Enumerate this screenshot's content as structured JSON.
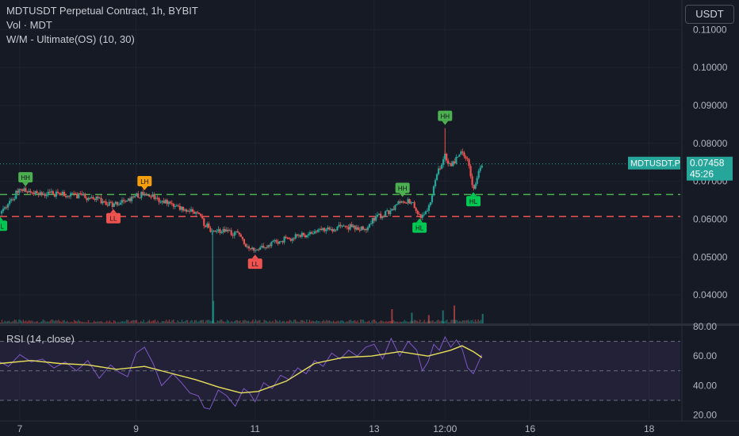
{
  "legend": {
    "title": "MDTUSDT Perpetual Contract, 1h, BYBIT",
    "vol": "Vol · MDT",
    "indicator": "W/M - Ultimate(OS) (10, 30)"
  },
  "currency_button": "USDT",
  "price_tag": {
    "symbol": "MDTUSDT.P",
    "price": "0.07458",
    "countdown": "45:26"
  },
  "rsi_legend": "RSI (14, close)",
  "colors": {
    "bg": "#161a25",
    "up": "#26a69a",
    "down": "#ef5350",
    "rsi": "#7e57c2",
    "rsi_ma": "#e7e05a",
    "green_label": "#4caf50",
    "orange_label": "#f59e0b"
  },
  "chart_data": [
    {
      "type": "candlestick",
      "title": "MDTUSDT Perpetual Contract, 1h, BYBIT",
      "y_tick_labels": [
        "0.11000",
        "0.10000",
        "0.09000",
        "0.08000",
        "0.07000",
        "0.06000",
        "0.05000",
        "0.04000"
      ],
      "ylim": [
        0.0325,
        0.1178
      ],
      "x_tick_labels": [
        "7",
        "9",
        "11",
        "13",
        "12:00",
        "16",
        "18"
      ],
      "x_ticks": [
        6.8,
        8.85,
        10.95,
        13.05,
        14.3,
        15.8,
        17.9
      ],
      "xlim": [
        6.45,
        18.45
      ],
      "path": [
        [
          6.45,
          0.0615
        ],
        [
          6.75,
          0.067
        ],
        [
          6.9,
          0.0678
        ],
        [
          7.2,
          0.0668
        ],
        [
          7.6,
          0.0665
        ],
        [
          7.9,
          0.066
        ],
        [
          8.2,
          0.065
        ],
        [
          8.45,
          0.0635
        ],
        [
          8.6,
          0.0645
        ],
        [
          8.85,
          0.066
        ],
        [
          9.0,
          0.0668
        ],
        [
          9.3,
          0.065
        ],
        [
          9.5,
          0.0632
        ],
        [
          9.7,
          0.0625
        ],
        [
          9.9,
          0.062
        ],
        [
          10.05,
          0.059
        ],
        [
          10.2,
          0.0565
        ],
        [
          10.4,
          0.057
        ],
        [
          10.65,
          0.056
        ],
        [
          10.8,
          0.053
        ],
        [
          10.95,
          0.0515
        ],
        [
          11.1,
          0.0525
        ],
        [
          11.4,
          0.0545
        ],
        [
          11.7,
          0.0555
        ],
        [
          12.0,
          0.0565
        ],
        [
          12.3,
          0.0575
        ],
        [
          12.6,
          0.058
        ],
        [
          12.9,
          0.0575
        ],
        [
          13.05,
          0.06
        ],
        [
          13.3,
          0.062
        ],
        [
          13.55,
          0.065
        ],
        [
          13.75,
          0.064
        ],
        [
          13.85,
          0.061
        ],
        [
          13.95,
          0.0615
        ],
        [
          14.05,
          0.065
        ],
        [
          14.15,
          0.072
        ],
        [
          14.3,
          0.077
        ],
        [
          14.4,
          0.074
        ],
        [
          14.6,
          0.078
        ],
        [
          14.7,
          0.076
        ],
        [
          14.8,
          0.068
        ],
        [
          14.95,
          0.0745
        ]
      ],
      "wick_spikes": [
        {
          "x": 10.2,
          "low": 0.0325
        },
        {
          "x": 14.3,
          "high": 0.084
        }
      ],
      "horizontal_levels": [
        {
          "value": 0.0665,
          "color": "#4caf50",
          "style": "dashed"
        },
        {
          "value": 0.0607,
          "color": "#ef5350",
          "style": "dashed"
        },
        {
          "value": 0.07458,
          "color": "#26a69a",
          "style": "dotted"
        }
      ],
      "pivot_labels": [
        {
          "text": "HL",
          "x": 6.45,
          "y": 0.0615,
          "color": "#00c853",
          "position": "below"
        },
        {
          "text": "HH",
          "x": 6.9,
          "y": 0.0678,
          "color": "#4caf50",
          "position": "above"
        },
        {
          "text": "LL",
          "x": 8.45,
          "y": 0.0635,
          "color": "#ef5350",
          "position": "below"
        },
        {
          "text": "LH",
          "x": 9.0,
          "y": 0.0668,
          "color": "#f59e0b",
          "position": "above"
        },
        {
          "text": "LL",
          "x": 10.95,
          "y": 0.0515,
          "color": "#ef5350",
          "position": "below"
        },
        {
          "text": "HH",
          "x": 13.55,
          "y": 0.065,
          "color": "#4caf50",
          "position": "above"
        },
        {
          "text": "HL",
          "x": 13.85,
          "y": 0.061,
          "color": "#00c853",
          "position": "below"
        },
        {
          "text": "HH",
          "x": 14.3,
          "y": 0.084,
          "color": "#4caf50",
          "position": "above"
        },
        {
          "text": "HL",
          "x": 14.8,
          "y": 0.068,
          "color": "#00c853",
          "position": "below"
        }
      ],
      "volume_spikes": [
        {
          "x": 10.2,
          "value": 0.95
        },
        {
          "x": 13.35,
          "value": 0.6
        },
        {
          "x": 13.7,
          "value": 0.45
        },
        {
          "x": 14.0,
          "value": 0.35
        },
        {
          "x": 14.25,
          "value": 0.55
        },
        {
          "x": 14.45,
          "value": 0.75
        },
        {
          "x": 14.95,
          "value": 0.4
        }
      ]
    },
    {
      "type": "line",
      "title": "RSI (14, close)",
      "y_tick_labels": [
        "80.00",
        "60.00",
        "40.00",
        "20.00"
      ],
      "ylim": [
        16,
        80
      ],
      "band": [
        30,
        70
      ],
      "series": [
        {
          "name": "RSI",
          "color": "#7e57c2",
          "x": [
            6.45,
            6.6,
            6.8,
            7.0,
            7.2,
            7.4,
            7.6,
            7.8,
            8.0,
            8.2,
            8.4,
            8.55,
            8.7,
            8.85,
            9.0,
            9.15,
            9.3,
            9.5,
            9.65,
            9.8,
            9.95,
            10.05,
            10.15,
            10.3,
            10.45,
            10.6,
            10.75,
            10.85,
            10.95,
            11.1,
            11.25,
            11.4,
            11.55,
            11.7,
            11.85,
            12.0,
            12.15,
            12.3,
            12.45,
            12.6,
            12.75,
            12.9,
            13.05,
            13.2,
            13.35,
            13.5,
            13.65,
            13.8,
            13.9,
            14.0,
            14.1,
            14.2,
            14.3,
            14.4,
            14.5,
            14.6,
            14.7,
            14.8,
            14.95
          ],
          "values": [
            56,
            53,
            61,
            56,
            58,
            52,
            56,
            50,
            57,
            45,
            54,
            49,
            46,
            62,
            66,
            55,
            40,
            48,
            42,
            35,
            33,
            25,
            24,
            37,
            33,
            26,
            38,
            35,
            29,
            42,
            38,
            47,
            44,
            52,
            48,
            57,
            53,
            62,
            58,
            64,
            60,
            66,
            68,
            58,
            72,
            60,
            70,
            64,
            50,
            56,
            68,
            64,
            73,
            66,
            71,
            65,
            52,
            48,
            61
          ]
        },
        {
          "name": "RSI-based MA",
          "color": "#e7e05a",
          "x": [
            6.45,
            7.0,
            7.5,
            8.0,
            8.5,
            9.0,
            9.5,
            9.9,
            10.3,
            10.7,
            11.0,
            11.5,
            12.0,
            12.5,
            13.0,
            13.5,
            14.0,
            14.4,
            14.6,
            14.8,
            14.95
          ],
          "values": [
            55,
            57,
            55,
            54,
            51,
            53,
            48,
            44,
            39,
            35,
            36,
            43,
            55,
            59,
            60,
            63,
            60,
            64,
            67,
            63,
            59
          ]
        }
      ]
    }
  ]
}
